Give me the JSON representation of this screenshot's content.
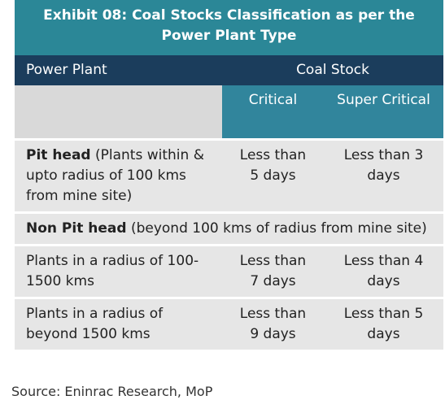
{
  "title": "Exhibit 08: Coal Stocks Classification as per the Power Plant Type",
  "header": {
    "power_plant": "Power Plant",
    "coal_stock": "Coal Stock"
  },
  "subheader": {
    "critical": "Critical",
    "super_critical": "Super Critical"
  },
  "rows": [
    {
      "plant_bold": "Pit head",
      "plant_rest": " (Plants within & upto radius of 100 kms from mine site)",
      "critical": "Less than 5 days",
      "super_critical": "Less than 3 days"
    },
    {
      "plant_bold": "Non Pit head",
      "plant_rest": " (beyond 100 kms of radius from mine site)"
    },
    {
      "plant": "Plants in a radius of 100-1500 kms",
      "critical": "Less than 7 days",
      "super_critical": "Less than 4 days"
    },
    {
      "plant": "Plants in a radius of beyond 1500 kms",
      "critical": "Less than 9 days",
      "super_critical": "Less than 5 days"
    }
  ],
  "source": "Source: Eninrac Research, MoP"
}
